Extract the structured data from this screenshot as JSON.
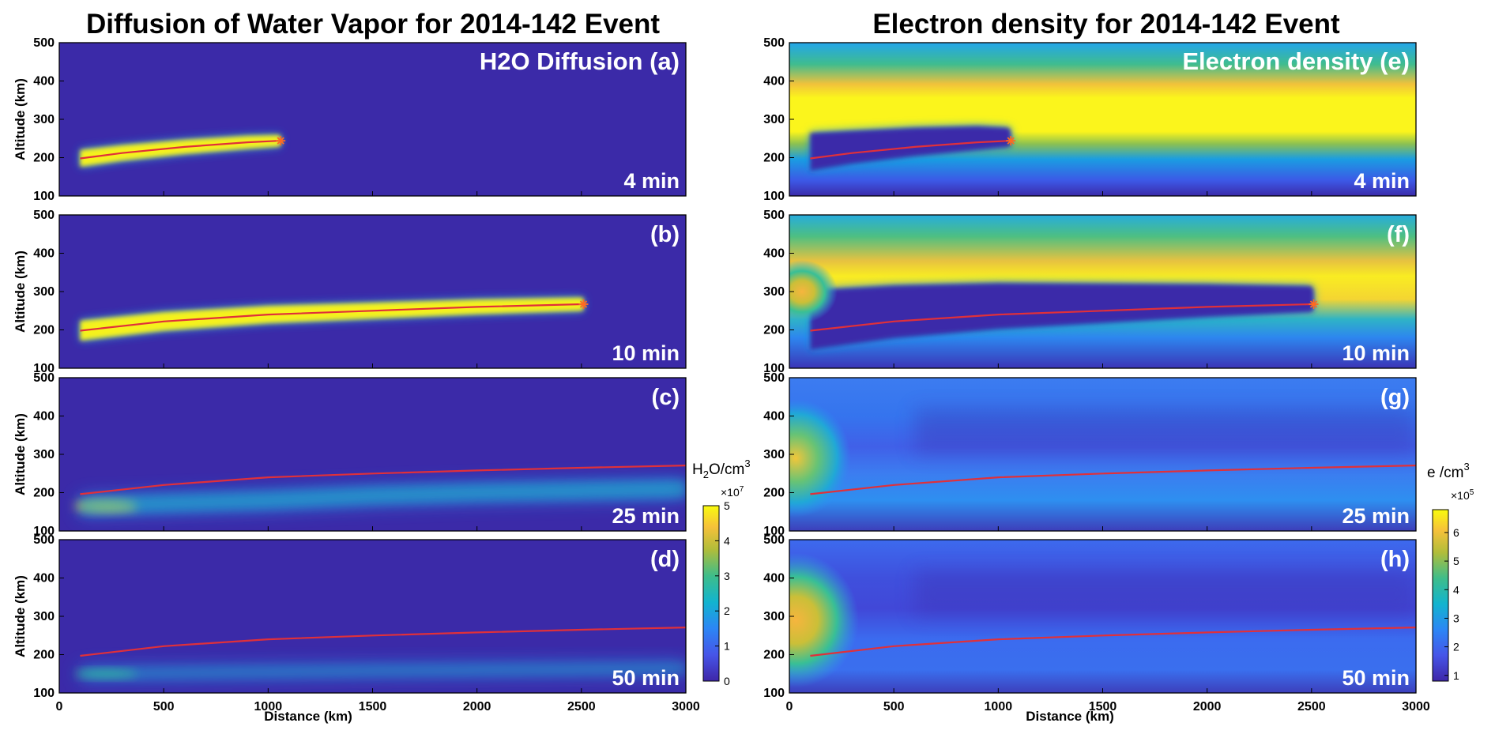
{
  "figure": {
    "left_title": "Diffusion of Water Vapor for 2014-142 Event",
    "right_title": "Electron density for 2014-142 Event",
    "colors": {
      "background_low": "#3b2aa8",
      "trajectory_line": "#e0303a",
      "marker": "#ff6a20",
      "in_panel_text": "#ffffff"
    }
  },
  "chart_data": [
    {
      "type": "heatmap",
      "column": "left",
      "quantity": "H2O Diffusion",
      "xlabel": "Distance  (km)",
      "ylabel": "Altitude (km)",
      "xlim": [
        0,
        3000
      ],
      "ylim": [
        100,
        500
      ],
      "xticks": [
        0,
        500,
        1000,
        1500,
        2000,
        2500,
        3000
      ],
      "yticks": [
        100,
        200,
        300,
        400,
        500
      ],
      "colorbar": {
        "title_main": "H",
        "title_sub": "2",
        "title_rest": "O/cm",
        "title_sup": "3",
        "multiplier_base": "×10",
        "multiplier_exp": "7",
        "range": [
          0,
          5
        ],
        "ticks": [
          0,
          1,
          2,
          3,
          4,
          5
        ],
        "colormap": "parula"
      },
      "panels": [
        {
          "panel": "(a)",
          "header": "H2O Diffusion (a)",
          "time": "4 min",
          "trajectory": {
            "x": [
              100,
              300,
              600,
              900,
              1050
            ],
            "y": [
              198,
              212,
              228,
              240,
              244
            ]
          },
          "release_point": {
            "x": 1060,
            "y": 244
          },
          "plume": {
            "x_start": 100,
            "x_end": 1060,
            "half_width_km": 22,
            "peak": 1.0
          }
        },
        {
          "panel": "(b)",
          "header": "(b)",
          "time": "10 min",
          "trajectory": {
            "x": [
              100,
              500,
              1000,
              1500,
              2000,
              2500
            ],
            "y": [
              198,
              222,
              240,
              250,
              260,
              267
            ]
          },
          "release_point": {
            "x": 2510,
            "y": 267
          },
          "plume": {
            "x_start": 100,
            "x_end": 2510,
            "half_width_km": 26,
            "peak": 1.0
          }
        },
        {
          "panel": "(c)",
          "header": "(c)",
          "time": "25 min",
          "trajectory": {
            "x": [
              100,
              500,
              1000,
              1500,
              2000,
              2500,
              3000
            ],
            "y": [
              196,
              220,
              240,
              250,
              258,
              265,
              271
            ]
          },
          "plume": {
            "x_start": 100,
            "x_end": 3000,
            "center_y": [
              165,
              172,
              180,
              192,
              200,
              205,
              210
            ],
            "half_width_km": 22,
            "peak": 0.75
          }
        },
        {
          "panel": "(d)",
          "header": "(d)",
          "time": "50 min",
          "trajectory": {
            "x": [
              100,
              500,
              1000,
              1500,
              2000,
              2500,
              3000
            ],
            "y": [
              197,
              222,
              240,
              250,
              258,
              265,
              271
            ]
          },
          "plume": {
            "x_start": 100,
            "x_end": 3000,
            "center_y": [
              150,
              152,
              155,
              158,
              160,
              162,
              164
            ],
            "half_width_km": 14,
            "peak": 0.45
          }
        }
      ]
    },
    {
      "type": "heatmap",
      "column": "right",
      "quantity": "Electron density",
      "xlabel": "Distance (km)",
      "ylabel": "",
      "xlim": [
        0,
        3000
      ],
      "ylim": [
        100,
        500
      ],
      "xticks": [
        0,
        500,
        1000,
        1500,
        2000,
        2500,
        3000
      ],
      "yticks": [
        100,
        200,
        300,
        400,
        500
      ],
      "colorbar": {
        "title_main": "e /cm",
        "title_sup": "3",
        "multiplier_base": "×10",
        "multiplier_exp": "5",
        "range": [
          0.8,
          6.8
        ],
        "ticks": [
          1,
          2,
          3,
          4,
          5,
          6
        ],
        "colormap": "parula"
      },
      "panels": [
        {
          "panel": "(e)",
          "header": "Electron density (e)",
          "time": "4 min",
          "trajectory": {
            "x": [
              100,
              300,
              600,
              900,
              1050
            ],
            "y": [
              198,
              212,
              228,
              240,
              244
            ]
          },
          "release_point": {
            "x": 1060,
            "y": 244
          }
        },
        {
          "panel": "(f)",
          "header": "(f)",
          "time": "10 min",
          "trajectory": {
            "x": [
              100,
              500,
              1000,
              1500,
              2000,
              2500
            ],
            "y": [
              198,
              222,
              240,
              250,
              260,
              267
            ]
          },
          "release_point": {
            "x": 2510,
            "y": 267
          }
        },
        {
          "panel": "(g)",
          "header": "(g)",
          "time": "25 min",
          "trajectory": {
            "x": [
              100,
              500,
              1000,
              1500,
              2000,
              2500,
              3000
            ],
            "y": [
              196,
              220,
              240,
              250,
              258,
              265,
              271
            ]
          }
        },
        {
          "panel": "(h)",
          "header": "(h)",
          "time": "50 min",
          "trajectory": {
            "x": [
              100,
              500,
              1000,
              1500,
              2000,
              2500,
              3000
            ],
            "y": [
              197,
              222,
              240,
              250,
              258,
              265,
              271
            ]
          }
        }
      ]
    }
  ]
}
